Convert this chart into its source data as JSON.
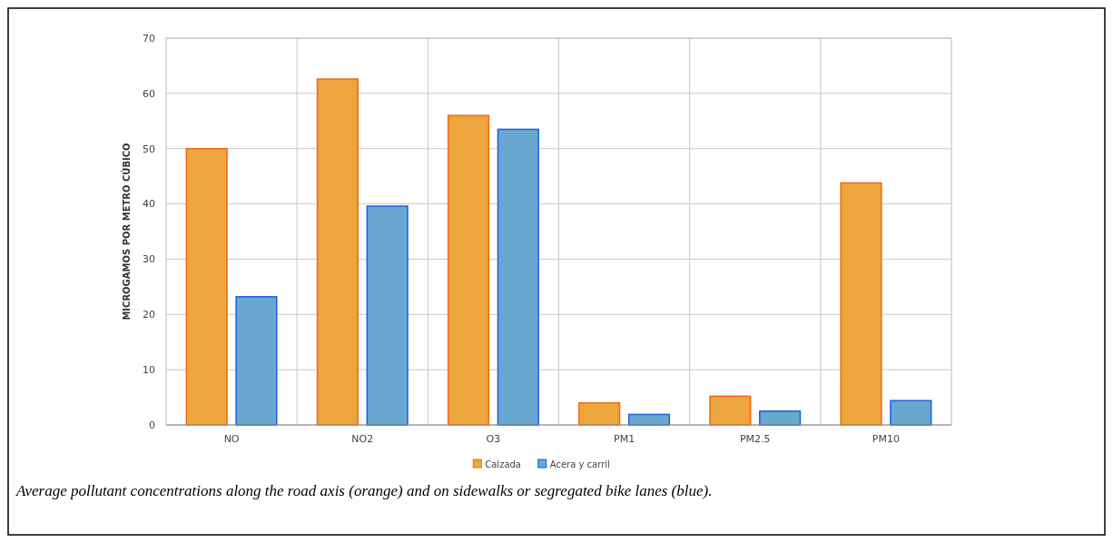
{
  "chart_data": {
    "type": "bar",
    "ylabel": "MICROGAMOS POR METRO CÚBICO",
    "categories": [
      "NO",
      "NO2",
      "O3",
      "PM1",
      "PM2.5",
      "PM10"
    ],
    "series": [
      {
        "name": "Calzada",
        "color": "#eda53d",
        "values": [
          50,
          62.6,
          56,
          4,
          5.2,
          43.8
        ]
      },
      {
        "name": "Acera y carril",
        "color": "#68a8d0",
        "values": [
          23.2,
          39.6,
          53.5,
          1.9,
          2.5,
          4.4
        ]
      }
    ],
    "ylim": [
      0,
      70
    ],
    "yticks": [
      0,
      10,
      20,
      30,
      40,
      50,
      60,
      70
    ],
    "grid": true,
    "legend": "bottom",
    "annotations": [
      "Average pollutant concentrations along the road axis (orange) and on sidewalks or segregated bike lanes (blue)."
    ]
  }
}
